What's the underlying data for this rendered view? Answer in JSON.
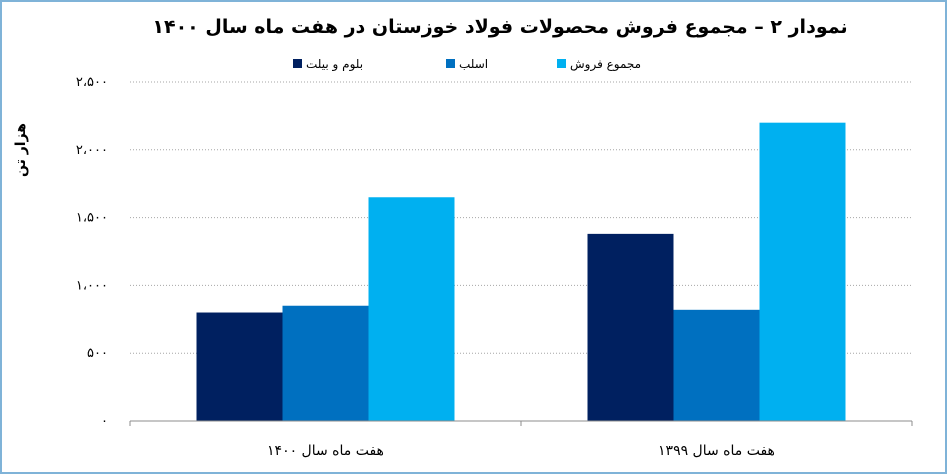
{
  "chart_data": {
    "type": "bar",
    "title": "نمودار ۲ – مجموع فروش محصولات فولاد خوزستان در هفت ماه سال ۱۴۰۰",
    "ylabel": "هزار تن",
    "xlabel": "",
    "ylim": [
      0,
      2500
    ],
    "yticks": [
      0,
      500,
      1000,
      1500,
      2000,
      2500
    ],
    "ytick_labels": [
      "۰",
      "۵۰۰",
      "۱،۰۰۰",
      "۱،۵۰۰",
      "۲،۰۰۰",
      "۲،۵۰۰"
    ],
    "grid": true,
    "legend_position": "top",
    "categories": [
      "هفت ماه سال ۱۳۹۹",
      "هفت ماه سال ۱۴۰۰"
    ],
    "series": [
      {
        "name": "بلوم و بیلت",
        "color": "#002060",
        "values": [
          1380,
          800
        ]
      },
      {
        "name": "اسلب",
        "color": "#0070c0",
        "values": [
          820,
          850
        ]
      },
      {
        "name": "مجموع فروش",
        "color": "#00b0f0",
        "values": [
          2200,
          1650
        ]
      }
    ]
  }
}
